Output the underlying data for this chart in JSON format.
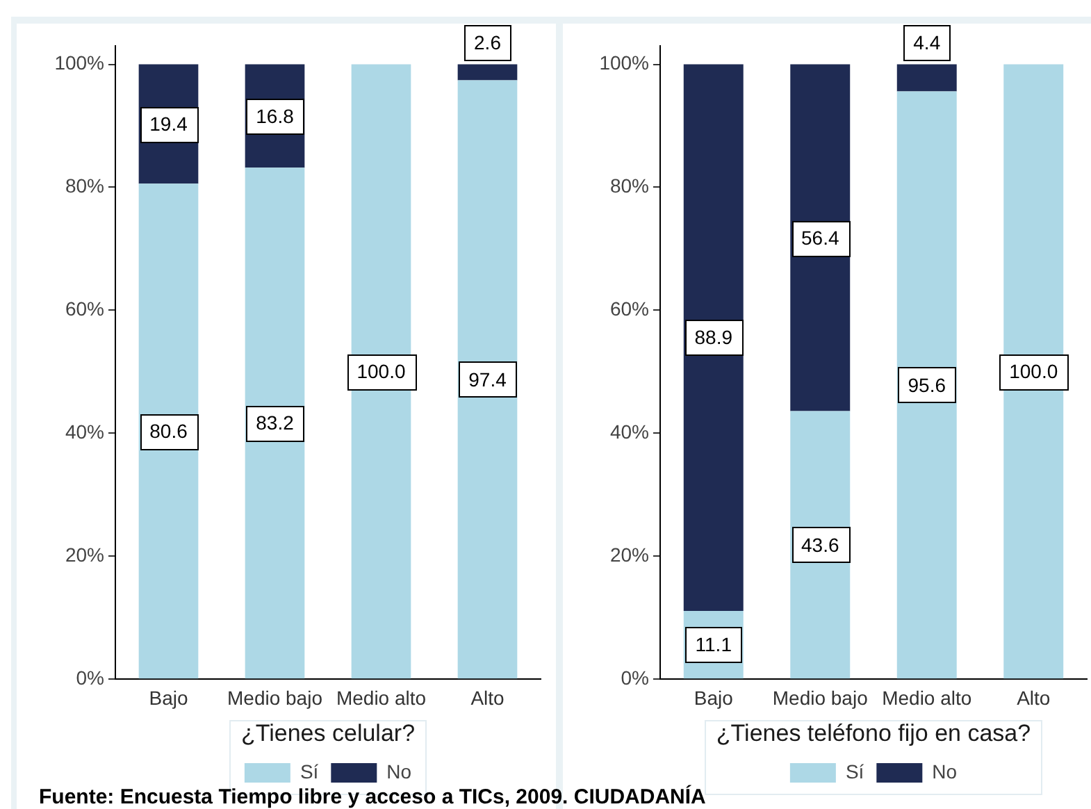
{
  "chart_data": [
    {
      "type": "bar",
      "stacked": true,
      "categories": [
        "Bajo",
        "Medio bajo",
        "Medio alto",
        "Alto"
      ],
      "series": [
        {
          "name": "Sí",
          "color": "#add8e6",
          "values": [
            80.6,
            83.2,
            100.0,
            97.4
          ],
          "value_labels": [
            "80.6",
            "83.2",
            "100.0",
            "97.4"
          ]
        },
        {
          "name": "No",
          "color": "#1f2b53",
          "values": [
            19.4,
            16.8,
            0,
            2.6
          ],
          "value_labels": [
            "19.4",
            "16.8",
            null,
            "2.6"
          ]
        }
      ],
      "ylim": [
        0,
        103
      ],
      "yticks": [
        {
          "value": 0,
          "label": "0%"
        },
        {
          "value": 20,
          "label": "20%"
        },
        {
          "value": 40,
          "label": "40%"
        },
        {
          "value": 60,
          "label": "60%"
        },
        {
          "value": 80,
          "label": "80%"
        },
        {
          "value": 100,
          "label": "100%"
        }
      ],
      "legend": "bottom",
      "legend_title": "¿Tienes celular?",
      "annotations": [
        "Fuente: Encuesta Tiempo libre y acceso a TICs, 2009. CIUDADANÍA"
      ]
    },
    {
      "type": "bar",
      "stacked": true,
      "categories": [
        "Bajo",
        "Medio bajo",
        "Medio alto",
        "Alto"
      ],
      "series": [
        {
          "name": "Sí",
          "color": "#add8e6",
          "values": [
            11.1,
            43.6,
            95.6,
            100.0
          ],
          "value_labels": [
            "11.1",
            "43.6",
            "95.6",
            "100.0"
          ]
        },
        {
          "name": "No",
          "color": "#1f2b53",
          "values": [
            88.9,
            56.4,
            4.4,
            0
          ],
          "value_labels": [
            "88.9",
            "56.4",
            "4.4",
            null
          ]
        }
      ],
      "ylim": [
        0,
        103
      ],
      "yticks": [
        {
          "value": 0,
          "label": "0%"
        },
        {
          "value": 20,
          "label": "20%"
        },
        {
          "value": 40,
          "label": "40%"
        },
        {
          "value": 60,
          "label": "60%"
        },
        {
          "value": 80,
          "label": "80%"
        },
        {
          "value": 100,
          "label": "100%"
        }
      ],
      "legend": "bottom",
      "legend_title": "¿Tienes teléfono fijo en casa?"
    }
  ]
}
